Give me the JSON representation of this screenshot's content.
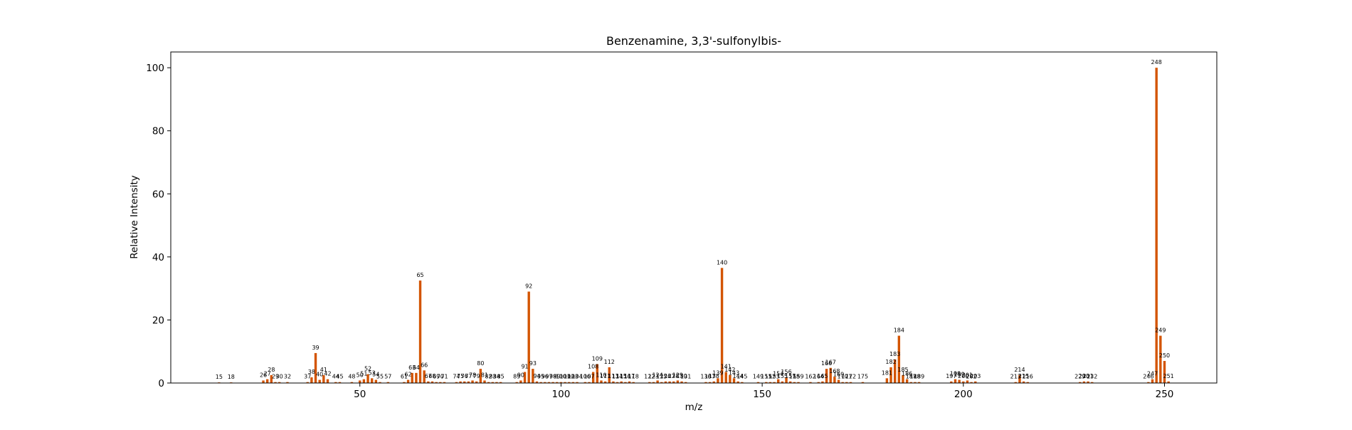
{
  "chart_data": {
    "type": "bar",
    "title": "Benzenamine, 3,3'-sulfonylbis-",
    "xlabel": "m/z",
    "ylabel": "Relative Intensity",
    "xlim": [
      3,
      263
    ],
    "ylim": [
      0,
      105
    ],
    "xticks": [
      50,
      100,
      150,
      200,
      250
    ],
    "yticks": [
      0,
      20,
      40,
      60,
      80,
      100
    ],
    "grid": false,
    "legend": "none",
    "bar_color": "#d35400",
    "peaks": [
      {
        "x": 15,
        "y": 0.2
      },
      {
        "x": 18,
        "y": 0.2
      },
      {
        "x": 26,
        "y": 0.8
      },
      {
        "x": 27,
        "y": 1.2
      },
      {
        "x": 28,
        "y": 2.5
      },
      {
        "x": 29,
        "y": 0.3
      },
      {
        "x": 30,
        "y": 0.3
      },
      {
        "x": 32,
        "y": 0.3
      },
      {
        "x": 37,
        "y": 0.3
      },
      {
        "x": 38,
        "y": 1.8
      },
      {
        "x": 39,
        "y": 9.5
      },
      {
        "x": 40,
        "y": 1.0
      },
      {
        "x": 41,
        "y": 2.5
      },
      {
        "x": 42,
        "y": 1.2
      },
      {
        "x": 44,
        "y": 0.3
      },
      {
        "x": 45,
        "y": 0.3
      },
      {
        "x": 48,
        "y": 0.3
      },
      {
        "x": 50,
        "y": 0.8
      },
      {
        "x": 51,
        "y": 1.2
      },
      {
        "x": 52,
        "y": 2.8
      },
      {
        "x": 53,
        "y": 1.5
      },
      {
        "x": 54,
        "y": 1.0
      },
      {
        "x": 55,
        "y": 0.3
      },
      {
        "x": 57,
        "y": 0.3
      },
      {
        "x": 61,
        "y": 0.3
      },
      {
        "x": 62,
        "y": 1.0
      },
      {
        "x": 63,
        "y": 3.2
      },
      {
        "x": 64,
        "y": 3.2
      },
      {
        "x": 65,
        "y": 32.5
      },
      {
        "x": 66,
        "y": 4.0
      },
      {
        "x": 67,
        "y": 0.5
      },
      {
        "x": 68,
        "y": 0.5
      },
      {
        "x": 69,
        "y": 0.3
      },
      {
        "x": 70,
        "y": 0.3
      },
      {
        "x": 71,
        "y": 0.3
      },
      {
        "x": 74,
        "y": 0.3
      },
      {
        "x": 75,
        "y": 0.5
      },
      {
        "x": 76,
        "y": 0.5
      },
      {
        "x": 77,
        "y": 0.5
      },
      {
        "x": 78,
        "y": 0.8
      },
      {
        "x": 79,
        "y": 0.5
      },
      {
        "x": 80,
        "y": 4.5
      },
      {
        "x": 81,
        "y": 0.8
      },
      {
        "x": 82,
        "y": 0.3
      },
      {
        "x": 83,
        "y": 0.3
      },
      {
        "x": 84,
        "y": 0.3
      },
      {
        "x": 85,
        "y": 0.3
      },
      {
        "x": 89,
        "y": 0.3
      },
      {
        "x": 90,
        "y": 0.8
      },
      {
        "x": 91,
        "y": 3.5
      },
      {
        "x": 92,
        "y": 29.0
      },
      {
        "x": 93,
        "y": 4.5
      },
      {
        "x": 94,
        "y": 0.5
      },
      {
        "x": 95,
        "y": 0.3
      },
      {
        "x": 96,
        "y": 0.3
      },
      {
        "x": 97,
        "y": 0.3
      },
      {
        "x": 98,
        "y": 0.3
      },
      {
        "x": 99,
        "y": 0.3
      },
      {
        "x": 100,
        "y": 0.3
      },
      {
        "x": 101,
        "y": 0.3
      },
      {
        "x": 102,
        "y": 0.3
      },
      {
        "x": 103,
        "y": 0.3
      },
      {
        "x": 104,
        "y": 0.3
      },
      {
        "x": 106,
        "y": 0.3
      },
      {
        "x": 107,
        "y": 0.3
      },
      {
        "x": 108,
        "y": 3.5
      },
      {
        "x": 109,
        "y": 6.0
      },
      {
        "x": 110,
        "y": 0.8
      },
      {
        "x": 111,
        "y": 0.5
      },
      {
        "x": 112,
        "y": 5.0
      },
      {
        "x": 113,
        "y": 0.5
      },
      {
        "x": 114,
        "y": 0.3
      },
      {
        "x": 115,
        "y": 0.5
      },
      {
        "x": 116,
        "y": 0.3
      },
      {
        "x": 117,
        "y": 0.5
      },
      {
        "x": 118,
        "y": 0.3
      },
      {
        "x": 122,
        "y": 0.3
      },
      {
        "x": 123,
        "y": 0.3
      },
      {
        "x": 124,
        "y": 0.8
      },
      {
        "x": 125,
        "y": 0.3
      },
      {
        "x": 126,
        "y": 0.5
      },
      {
        "x": 127,
        "y": 0.5
      },
      {
        "x": 128,
        "y": 0.5
      },
      {
        "x": 129,
        "y": 0.8
      },
      {
        "x": 130,
        "y": 0.5
      },
      {
        "x": 131,
        "y": 0.3
      },
      {
        "x": 136,
        "y": 0.3
      },
      {
        "x": 137,
        "y": 0.3
      },
      {
        "x": 138,
        "y": 0.5
      },
      {
        "x": 139,
        "y": 1.5
      },
      {
        "x": 140,
        "y": 36.5
      },
      {
        "x": 141,
        "y": 3.5
      },
      {
        "x": 142,
        "y": 2.5
      },
      {
        "x": 143,
        "y": 1.5
      },
      {
        "x": 144,
        "y": 0.5
      },
      {
        "x": 145,
        "y": 0.3
      },
      {
        "x": 149,
        "y": 0.3
      },
      {
        "x": 151,
        "y": 0.3
      },
      {
        "x": 152,
        "y": 0.3
      },
      {
        "x": 153,
        "y": 0.3
      },
      {
        "x": 154,
        "y": 1.2
      },
      {
        "x": 155,
        "y": 0.5
      },
      {
        "x": 156,
        "y": 1.8
      },
      {
        "x": 157,
        "y": 0.5
      },
      {
        "x": 158,
        "y": 0.3
      },
      {
        "x": 159,
        "y": 0.3
      },
      {
        "x": 162,
        "y": 0.3
      },
      {
        "x": 164,
        "y": 0.3
      },
      {
        "x": 165,
        "y": 0.5
      },
      {
        "x": 166,
        "y": 4.5
      },
      {
        "x": 167,
        "y": 4.8
      },
      {
        "x": 168,
        "y": 2.0
      },
      {
        "x": 169,
        "y": 1.0
      },
      {
        "x": 170,
        "y": 0.3
      },
      {
        "x": 171,
        "y": 0.3
      },
      {
        "x": 172,
        "y": 0.3
      },
      {
        "x": 175,
        "y": 0.3
      },
      {
        "x": 181,
        "y": 1.5
      },
      {
        "x": 182,
        "y": 5.0
      },
      {
        "x": 183,
        "y": 7.5
      },
      {
        "x": 184,
        "y": 15.0
      },
      {
        "x": 185,
        "y": 2.5
      },
      {
        "x": 186,
        "y": 1.2
      },
      {
        "x": 187,
        "y": 0.3
      },
      {
        "x": 188,
        "y": 0.3
      },
      {
        "x": 189,
        "y": 0.3
      },
      {
        "x": 197,
        "y": 0.5
      },
      {
        "x": 198,
        "y": 1.2
      },
      {
        "x": 199,
        "y": 1.0
      },
      {
        "x": 200,
        "y": 0.5
      },
      {
        "x": 201,
        "y": 0.8
      },
      {
        "x": 202,
        "y": 0.3
      },
      {
        "x": 203,
        "y": 0.5
      },
      {
        "x": 213,
        "y": 0.3
      },
      {
        "x": 214,
        "y": 2.5
      },
      {
        "x": 215,
        "y": 0.5
      },
      {
        "x": 216,
        "y": 0.3
      },
      {
        "x": 229,
        "y": 0.3
      },
      {
        "x": 230,
        "y": 0.5
      },
      {
        "x": 231,
        "y": 0.5
      },
      {
        "x": 232,
        "y": 0.3
      },
      {
        "x": 246,
        "y": 0.3
      },
      {
        "x": 247,
        "y": 1.2
      },
      {
        "x": 248,
        "y": 100.0
      },
      {
        "x": 249,
        "y": 15.0
      },
      {
        "x": 250,
        "y": 7.0
      },
      {
        "x": 251,
        "y": 0.5
      }
    ]
  }
}
